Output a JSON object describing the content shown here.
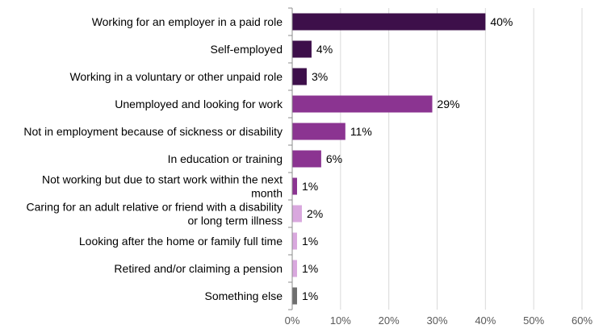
{
  "chart_data": {
    "type": "bar",
    "orientation": "horizontal",
    "categories": [
      [
        "Working for an employer in a paid role"
      ],
      [
        "Self-employed"
      ],
      [
        "Working in a voluntary or other unpaid role"
      ],
      [
        "Unemployed and looking for work"
      ],
      [
        "Not in employment because of sickness or disability"
      ],
      [
        "In education or training"
      ],
      [
        "Not working but due to start work within the next",
        "month"
      ],
      [
        "Caring for an adult relative or friend with a disability",
        "or long term illness"
      ],
      [
        "Looking after the home or family full time"
      ],
      [
        "Retired and/or claiming a pension"
      ],
      [
        "Something else"
      ]
    ],
    "values": [
      40,
      4,
      3,
      29,
      11,
      6,
      1,
      2,
      1,
      1,
      1
    ],
    "value_labels": [
      "40%",
      "4%",
      "3%",
      "29%",
      "11%",
      "6%",
      "1%",
      "2%",
      "1%",
      "1%",
      "1%"
    ],
    "bar_colors": [
      "#3d0f4a",
      "#3d0f4a",
      "#3d0f4a",
      "#8b3491",
      "#8b3491",
      "#8b3491",
      "#8b3491",
      "#d9a8de",
      "#d9a8de",
      "#d9a8de",
      "#6e6e6e"
    ],
    "xlim": [
      0,
      60
    ],
    "xticks": [
      0,
      10,
      20,
      30,
      40,
      50,
      60
    ],
    "xtick_labels": [
      "0%",
      "10%",
      "20%",
      "30%",
      "40%",
      "50%",
      "60%"
    ],
    "grid": true,
    "title": "",
    "xlabel": "",
    "ylabel": ""
  }
}
